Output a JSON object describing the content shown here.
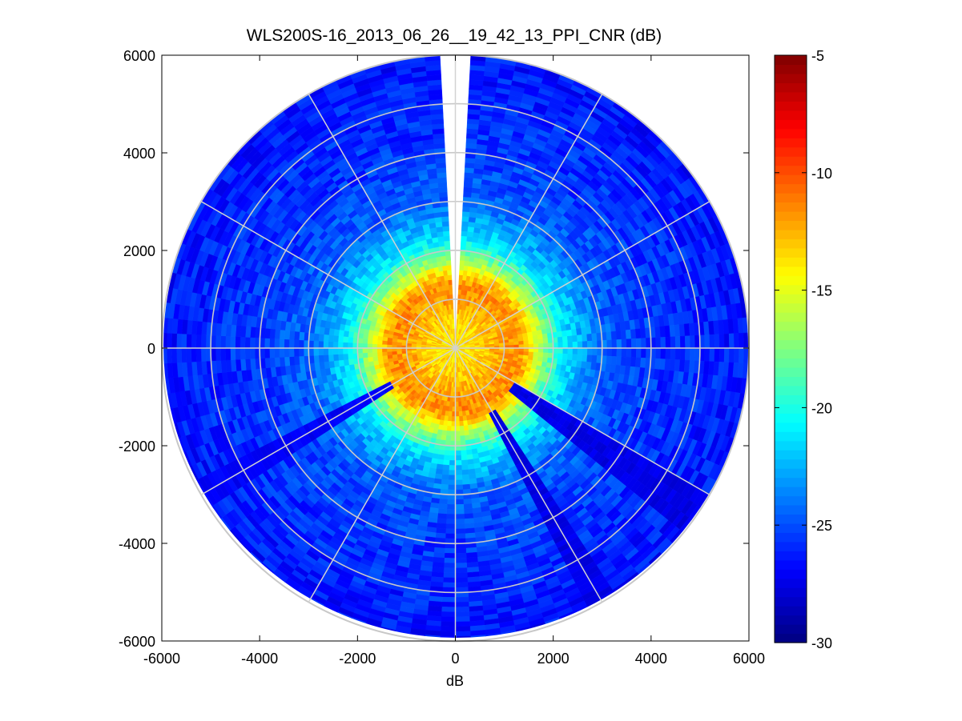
{
  "chart_data": {
    "type": "heatmap",
    "subtype": "polar-ppi",
    "title": "WLS200S-16_2013_06_26__19_42_13_PPI_CNR (dB)",
    "xlabel": "dB",
    "ylabel": "",
    "xlim": [
      -6000,
      6000
    ],
    "ylim": [
      -6000,
      6000
    ],
    "x_ticks": [
      -6000,
      -4000,
      -2000,
      0,
      2000,
      4000,
      6000
    ],
    "y_ticks": [
      6000,
      4000,
      2000,
      0,
      -2000,
      -4000,
      -6000
    ],
    "x_tick_labels": [
      "-6000",
      "-4000",
      "-2000",
      "0",
      "2000",
      "4000",
      "6000"
    ],
    "y_tick_labels": [
      "6000",
      "4000",
      "2000",
      "0",
      "-2000",
      "-4000",
      "-6000"
    ],
    "max_range": 6000,
    "range_ring_spacing": 1000,
    "radial_spacing_deg": 30,
    "missing_sector_deg": [
      -4,
      4
    ],
    "colorbar": {
      "colormap": "jet",
      "limits": [
        -30,
        -5
      ],
      "ticks": [
        -5,
        -10,
        -15,
        -20,
        -25,
        -30
      ],
      "tick_labels": [
        "-5",
        "-10",
        "-15",
        "-20",
        "-25",
        "-30"
      ]
    },
    "cnr_profile": {
      "range_m": [
        0,
        500,
        1000,
        1300,
        1500,
        1800,
        2200,
        3000,
        4000,
        5000,
        6000
      ],
      "cnr_db": [
        -14,
        -13.5,
        -12,
        -11.5,
        -13,
        -17,
        -21,
        -24.5,
        -25.5,
        -26,
        -26.5
      ]
    },
    "shadow_sectors": [
      {
        "angle_deg": 125,
        "from_range_m": 1400,
        "cnr_db": -27.5
      },
      {
        "angle_deg": 150,
        "from_range_m": 1500,
        "cnr_db": -27.5
      },
      {
        "angle_deg": 240,
        "from_range_m": 1500,
        "cnr_db": -27
      }
    ]
  }
}
